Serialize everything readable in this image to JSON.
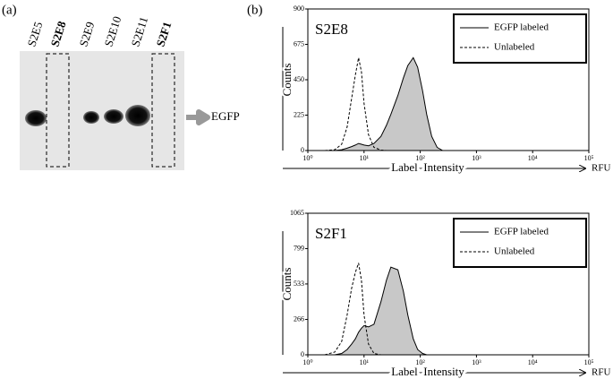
{
  "panel_a": {
    "label": "(a)",
    "lanes": [
      "S2E5",
      "S2E8",
      "S2E9",
      "S2E10",
      "S2E11",
      "S2F1"
    ],
    "marker": "EGFP"
  },
  "panel_b": {
    "label": "(b)"
  },
  "chart_data": [
    {
      "type": "area",
      "title": "S2E8",
      "xlabel": "Label  Intensity",
      "xunit": "RFU",
      "ylabel": "Counts",
      "xscale": "log",
      "xlim": [
        1,
        100000
      ],
      "xticks": [
        {
          "value": 1,
          "label": "10⁰"
        },
        {
          "value": 10,
          "label": "10¹"
        },
        {
          "value": 100,
          "label": "10²"
        },
        {
          "value": 1000,
          "label": "10³"
        },
        {
          "value": 10000,
          "label": "10⁴"
        },
        {
          "value": 100000,
          "label": "10⁵"
        }
      ],
      "ylim": [
        0,
        900
      ],
      "yticks": [
        0,
        225,
        450,
        675,
        900
      ],
      "x": [
        2,
        3,
        4,
        5,
        6,
        7,
        8,
        9,
        10,
        12,
        15,
        20,
        25,
        30,
        40,
        50,
        60,
        75,
        90,
        110,
        130,
        160,
        200,
        250
      ],
      "series": [
        {
          "name": "EGFP labeled",
          "color": "#000000",
          "fill": "#c8c8c8",
          "style": "solid",
          "values": [
            0,
            0,
            5,
            15,
            25,
            35,
            45,
            40,
            35,
            30,
            45,
            90,
            160,
            230,
            350,
            460,
            540,
            590,
            530,
            380,
            230,
            90,
            20,
            0
          ]
        },
        {
          "name": "Unlabeled",
          "color": "#000000",
          "style": "dashed",
          "values": [
            0,
            5,
            40,
            150,
            330,
            480,
            590,
            500,
            300,
            100,
            20,
            3,
            0,
            0,
            0,
            0,
            0,
            0,
            0,
            0,
            0,
            0,
            0,
            0
          ]
        }
      ]
    },
    {
      "type": "area",
      "title": "S2F1",
      "xlabel": "Label  Intensity",
      "xunit": "RFU",
      "ylabel": "Counts",
      "xscale": "log",
      "xlim": [
        1,
        100000
      ],
      "xticks": [
        {
          "value": 1,
          "label": "10⁰"
        },
        {
          "value": 10,
          "label": "10¹"
        },
        {
          "value": 100,
          "label": "10²"
        },
        {
          "value": 1000,
          "label": "10³"
        },
        {
          "value": 10000,
          "label": "10⁴"
        },
        {
          "value": 100000,
          "label": "10⁵"
        }
      ],
      "ylim": [
        0,
        1065
      ],
      "yticks": [
        0,
        266,
        533,
        799,
        1065
      ],
      "x": [
        2,
        3,
        4,
        5,
        6,
        7,
        8,
        9,
        10,
        12,
        15,
        20,
        25,
        30,
        40,
        50,
        60,
        75,
        90,
        110,
        130,
        160,
        200,
        250
      ],
      "series": [
        {
          "name": "EGFP labeled",
          "color": "#000000",
          "fill": "#c8c8c8",
          "style": "solid",
          "values": [
            0,
            0,
            10,
            40,
            80,
            120,
            170,
            200,
            220,
            210,
            230,
            400,
            560,
            660,
            640,
            480,
            300,
            120,
            40,
            10,
            0,
            0,
            0,
            0
          ]
        },
        {
          "name": "Unlabeled",
          "color": "#000000",
          "style": "dashed",
          "values": [
            0,
            20,
            100,
            300,
            500,
            620,
            690,
            560,
            300,
            80,
            10,
            0,
            0,
            0,
            0,
            0,
            0,
            0,
            0,
            0,
            0,
            0,
            0,
            0
          ]
        }
      ]
    }
  ]
}
